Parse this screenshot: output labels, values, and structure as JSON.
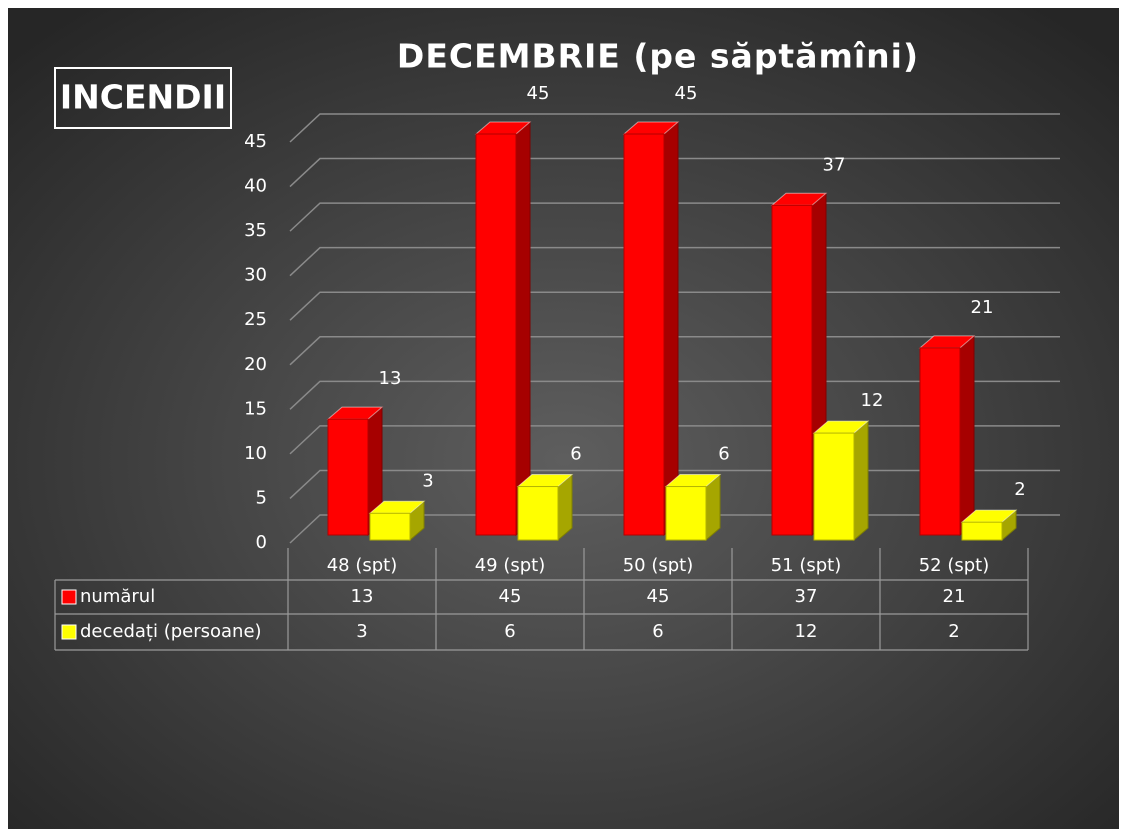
{
  "chart_data": {
    "type": "bar",
    "title": "DECEMBRIE  (pe săptămîni)",
    "annotation": "INCENDII",
    "categories": [
      "48 (spt)",
      "49 (spt)",
      "50 (spt)",
      "51 (spt)",
      "52 (spt)"
    ],
    "series": [
      {
        "name": "numărul",
        "color": "#ff0000",
        "values": [
          13,
          45,
          45,
          37,
          21
        ]
      },
      {
        "name": "decedați (persoane)",
        "color": "#ffff00",
        "values": [
          3,
          6,
          6,
          12,
          2
        ]
      }
    ],
    "ylim": [
      0,
      45
    ],
    "yticks": [
      0,
      5,
      10,
      15,
      20,
      25,
      30,
      35,
      40,
      45
    ],
    "grid": true
  }
}
